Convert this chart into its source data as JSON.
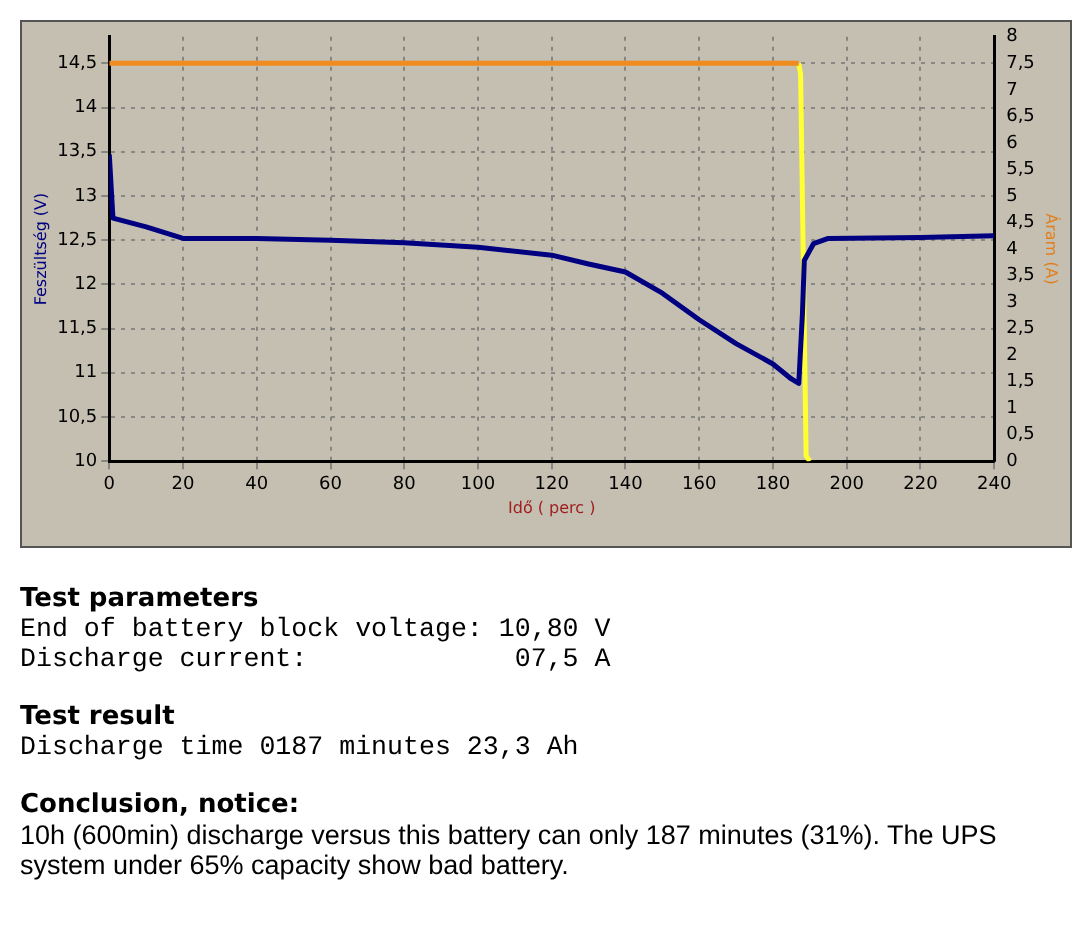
{
  "chart_data": {
    "type": "line",
    "xlabel": "Idő ( perc )",
    "ylabel": "Feszültség (V)",
    "y2label": "Áram (A)",
    "xlim": [
      0,
      240
    ],
    "xticks": [
      0,
      20,
      40,
      60,
      80,
      100,
      120,
      140,
      160,
      180,
      200,
      220,
      240
    ],
    "ylim": [
      10,
      14.8
    ],
    "yticks": [
      10,
      {
        "value": 10.5,
        "label": "10,5"
      },
      11,
      {
        "value": 11.5,
        "label": "11,5"
      },
      12,
      {
        "value": 12.5,
        "label": "12,5"
      },
      13,
      {
        "value": 13.5,
        "label": "13,5"
      },
      14,
      {
        "value": 14.5,
        "label": "14,5"
      }
    ],
    "y2lim": [
      0,
      8
    ],
    "y2ticks": [
      0,
      {
        "value": 0.5,
        "label": "0,5"
      },
      1,
      {
        "value": 1.5,
        "label": "1,5"
      },
      2,
      {
        "value": 2.5,
        "label": "2,5"
      },
      3,
      {
        "value": 3.5,
        "label": "3,5"
      },
      4,
      {
        "value": 4.5,
        "label": "4,5"
      },
      5,
      {
        "value": 5.5,
        "label": "5,5"
      },
      6,
      {
        "value": 6.5,
        "label": "6,5"
      },
      7,
      {
        "value": 7.5,
        "label": "7,5"
      },
      8
    ],
    "grid": true,
    "marker": "none",
    "line_style": "solid",
    "series": [
      {
        "color": "#000080",
        "x": [
          0,
          1,
          10,
          20,
          40,
          60,
          80,
          100,
          120,
          130,
          140,
          150,
          160,
          170,
          180,
          185,
          187,
          188,
          188.5,
          191,
          195,
          220,
          240
        ],
        "values": [
          13.47,
          12.75,
          12.65,
          12.52,
          12.52,
          12.5,
          12.47,
          12.42,
          12.33,
          12.23,
          12.14,
          11.9,
          11.6,
          11.33,
          11.1,
          10.93,
          10.88,
          11.67,
          12.27,
          12.46,
          12.52,
          12.53,
          12.55
        ]
      },
      {
        "color": "#f08c1e",
        "axis": "y2",
        "x": [
          0,
          187
        ],
        "values": [
          7.5,
          7.5
        ]
      },
      {
        "color": "#ffff33",
        "axis": "y2",
        "x": [
          187,
          187.5,
          189,
          190
        ],
        "values": [
          7.5,
          7.3,
          0.1,
          0
        ]
      }
    ],
    "annotations": [
      "Test parameters",
      "End of battery block voltage: 10,80 V",
      "Discharge current:             07,5 A",
      "Test result",
      "Discharge time 0187 minutes 23,3 Ah",
      "Conclusion, notice:",
      "10h (600min) discharge versus this battery can only 187 minutes (31%). The UPS system under 65% capacity show bad battery."
    ]
  }
}
